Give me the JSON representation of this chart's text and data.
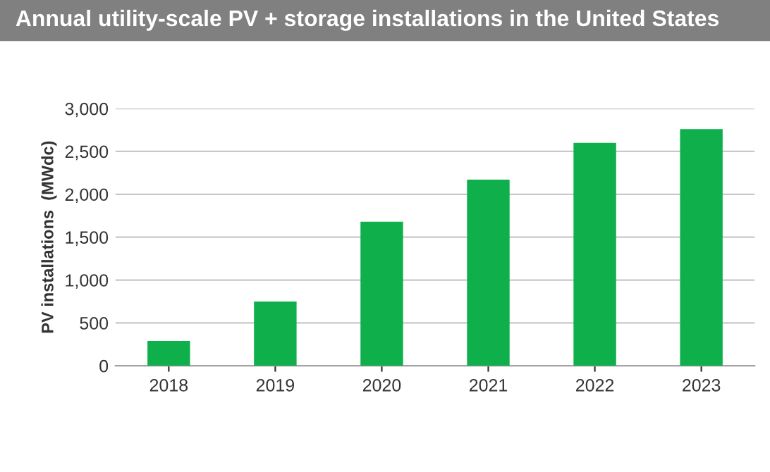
{
  "chart_data": {
    "type": "bar",
    "title": "Annual utility-scale PV + storage installations in the United States",
    "ylabel": "PV installations  (MWdc)",
    "categories": [
      "2018",
      "2019",
      "2020",
      "2021",
      "2022",
      "2023"
    ],
    "values": [
      290,
      750,
      1680,
      2170,
      2600,
      2760
    ],
    "color": "#0fb04b",
    "ylim": [
      0,
      3000
    ],
    "yticks": [
      {
        "value": 0,
        "label": "0"
      },
      {
        "value": 500,
        "label": "500"
      },
      {
        "value": 1000,
        "label": "1,000"
      },
      {
        "value": 1500,
        "label": "1,500"
      },
      {
        "value": 2000,
        "label": "2,000"
      },
      {
        "value": 2500,
        "label": "2,500"
      },
      {
        "value": 3000,
        "label": "3,000"
      }
    ],
    "grid": "y",
    "legend": false
  }
}
